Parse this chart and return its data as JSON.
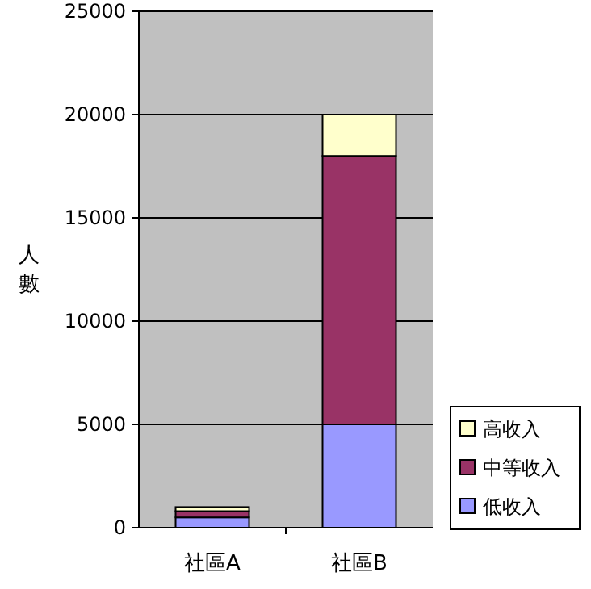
{
  "chart_data": {
    "type": "bar",
    "stacked": true,
    "ylabel": "人數",
    "categories": [
      "社區A",
      "社區B"
    ],
    "series": [
      {
        "name": "低收入",
        "color": "#9999ff",
        "values": [
          500,
          5000
        ]
      },
      {
        "name": "中等收入",
        "color": "#993366",
        "values": [
          300,
          13000
        ]
      },
      {
        "name": "高收入",
        "color": "#ffffcc",
        "values": [
          200,
          2000
        ]
      }
    ],
    "ylim": [
      0,
      25000
    ],
    "yticks": [
      0,
      5000,
      10000,
      15000,
      20000,
      25000
    ],
    "grid": "y",
    "legend": "right"
  }
}
